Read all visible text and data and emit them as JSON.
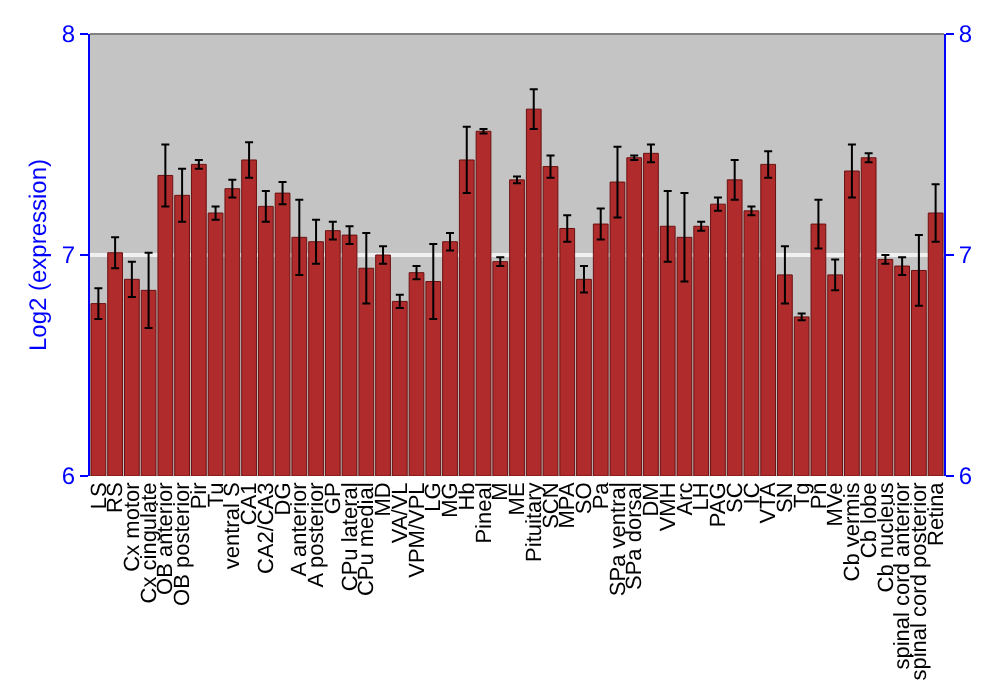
{
  "chart_data": {
    "type": "bar",
    "ylabel": "Log2 (expression)",
    "categories": [
      "LS",
      "RS",
      "Cx motor",
      "Cx cingulate",
      "OB anterior",
      "OB posterior",
      "Pir",
      "Tu",
      "ventral S",
      "CA1",
      "CA2/CA3",
      "DG",
      "A anterior",
      "A posterior",
      "GP",
      "CPu lateral",
      "CPu medial",
      "MD",
      "VA/VL",
      "VPM/VPL",
      "LG",
      "MG",
      "Hb",
      "Pineal",
      "M",
      "ME",
      "Pituitary",
      "SCN",
      "MPA",
      "SO",
      "Pa",
      "SPa ventral",
      "SPa dorsal",
      "DM",
      "VMH",
      "Arc",
      "LH",
      "PAG",
      "SC",
      "IC",
      "VTA",
      "SN",
      "Tg",
      "Pn",
      "MVe",
      "Cb vermis",
      "Cb lobe",
      "Cb nucleus",
      "spinal cord anterior",
      "spinal cord posterior",
      "Retina"
    ],
    "series": [
      {
        "color": "#b02c2c",
        "values": [
          6.78,
          7.01,
          6.89,
          6.84,
          7.36,
          7.27,
          7.41,
          7.19,
          7.3,
          7.43,
          7.22,
          7.28,
          7.08,
          7.06,
          7.11,
          7.09,
          6.94,
          7.0,
          6.79,
          6.92,
          6.88,
          7.06,
          7.43,
          7.56,
          6.97,
          7.34,
          7.66,
          7.4,
          7.12,
          6.89,
          7.14,
          7.33,
          7.44,
          7.46,
          7.13,
          7.08,
          7.13,
          7.23,
          7.34,
          7.2,
          7.41,
          6.91,
          6.72,
          7.14,
          6.91,
          7.38,
          7.44,
          6.98,
          6.95,
          6.93,
          7.19
        ],
        "errors": [
          0.07,
          0.07,
          0.08,
          0.17,
          0.14,
          0.12,
          0.02,
          0.03,
          0.04,
          0.08,
          0.07,
          0.05,
          0.17,
          0.1,
          0.04,
          0.04,
          0.16,
          0.04,
          0.03,
          0.03,
          0.17,
          0.04,
          0.15,
          0.01,
          0.02,
          0.015,
          0.09,
          0.05,
          0.06,
          0.06,
          0.07,
          0.16,
          0.01,
          0.04,
          0.16,
          0.2,
          0.02,
          0.03,
          0.09,
          0.02,
          0.06,
          0.13,
          0.015,
          0.11,
          0.07,
          0.12,
          0.02,
          0.02,
          0.04,
          0.16,
          0.13
        ]
      }
    ],
    "ylim": [
      6,
      8
    ],
    "yticks": [
      6,
      7,
      8
    ],
    "y2lim": [
      6,
      8
    ],
    "y2ticks": [
      6,
      7,
      8
    ],
    "grid": "y"
  }
}
